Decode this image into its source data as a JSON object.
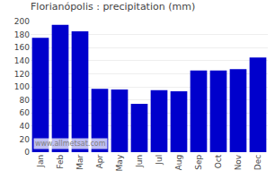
{
  "chart_data": {
    "type": "bar",
    "title": "Florianópolis : precipitation (mm)",
    "categories": [
      "Jan",
      "Feb",
      "Mar",
      "Apr",
      "May",
      "Jun",
      "Jul",
      "Aug",
      "Sep",
      "Oct",
      "Nov",
      "Dec"
    ],
    "values": [
      175,
      195,
      185,
      97,
      96,
      74,
      95,
      93,
      125,
      125,
      127,
      145
    ],
    "color": "#0000cc",
    "ylim": [
      0,
      200
    ],
    "yticks": [
      0,
      20,
      40,
      60,
      80,
      100,
      120,
      140,
      160,
      180,
      200
    ],
    "grid": true,
    "annotations": [
      "www.allmetsat.com"
    ]
  }
}
